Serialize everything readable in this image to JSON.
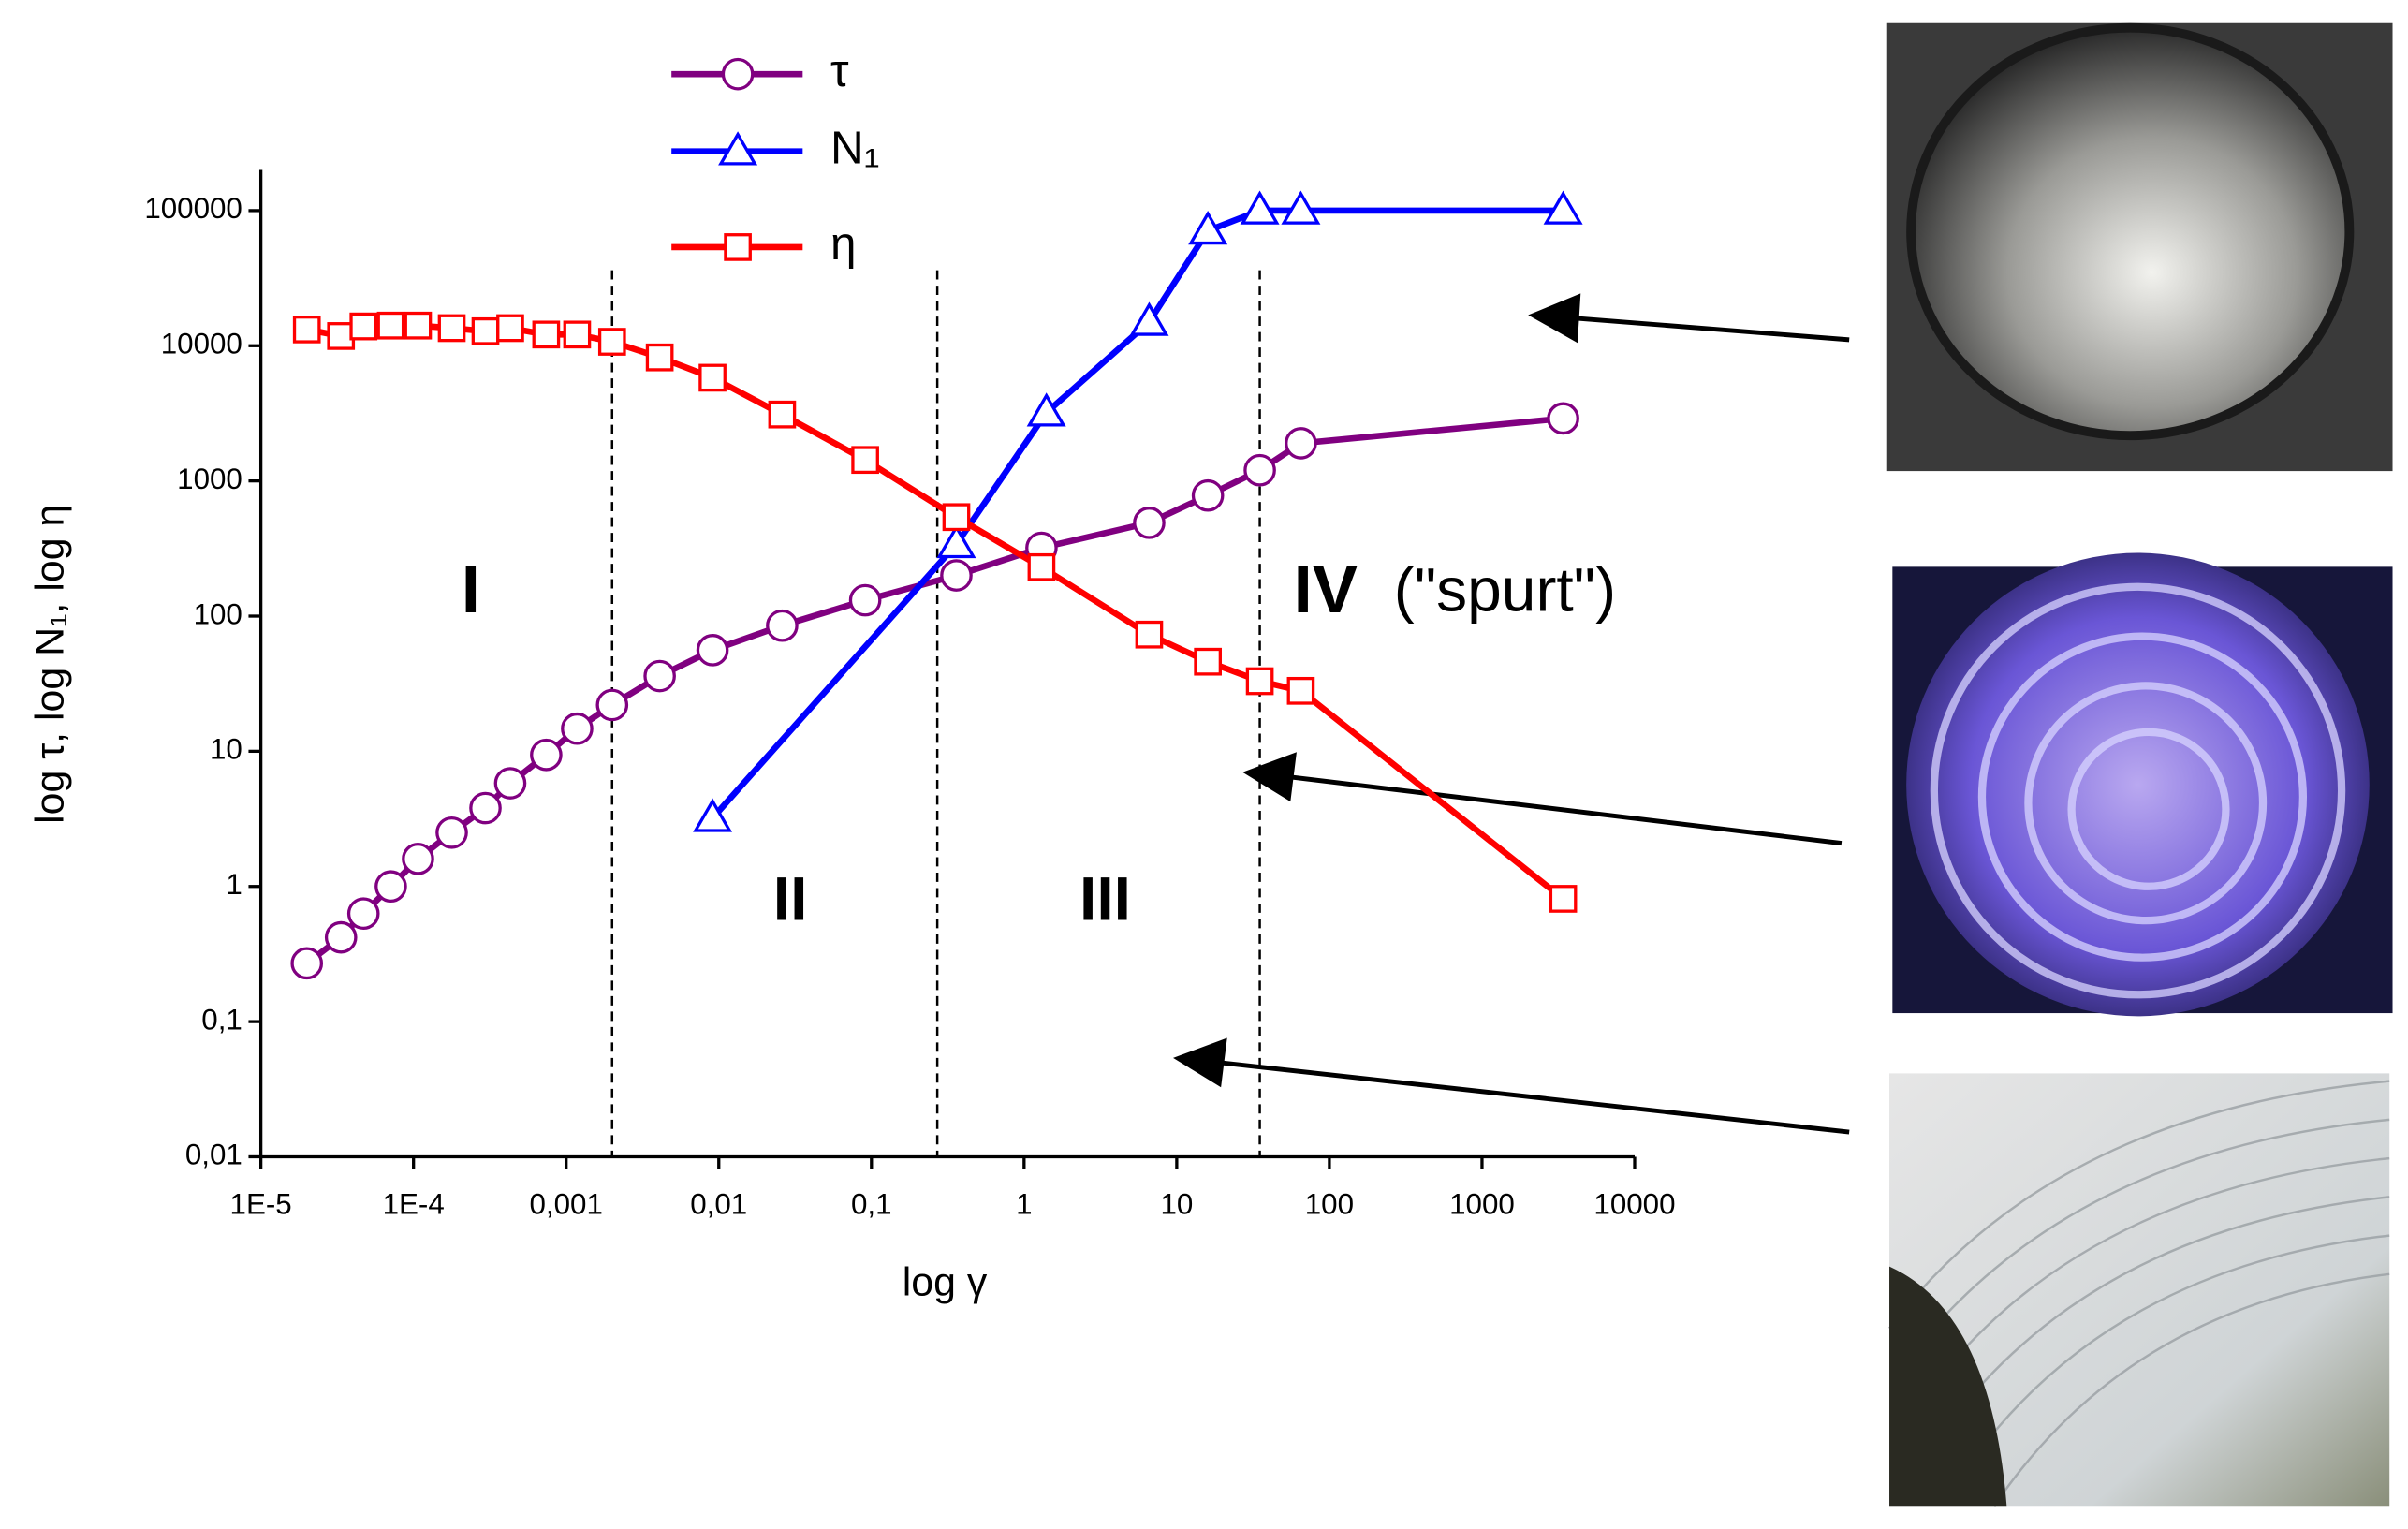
{
  "chart_data": {
    "type": "line",
    "x_label": "log γ",
    "y_label": "log τ, log N₁, log η",
    "log_x": true,
    "log_y": true,
    "xlim": [
      1e-05,
      10000
    ],
    "ylim": [
      0.01,
      200000
    ],
    "xticks": [
      {
        "value": 1e-05,
        "label": "1E-5"
      },
      {
        "value": 0.0001,
        "label": "1E-4"
      },
      {
        "value": 0.001,
        "label": "0,001"
      },
      {
        "value": 0.01,
        "label": "0,01"
      },
      {
        "value": 0.1,
        "label": "0,1"
      },
      1,
      10,
      100,
      1000,
      10000
    ],
    "yticks": [
      {
        "value": 0.01,
        "label": "0,01"
      },
      {
        "value": 0.1,
        "label": "0,1"
      },
      1,
      10,
      100,
      1000,
      10000,
      100000
    ],
    "vlines": [
      0.002,
      0.27,
      35
    ],
    "annotations": [
      "I",
      "II",
      "III",
      "IV",
      "(\"spurt\")"
    ],
    "series": [
      {
        "name": "τ",
        "color": "#800080",
        "marker": "circle",
        "x": [
          2e-05,
          3.35e-05,
          4.7e-05,
          7.1e-05,
          0.000107,
          0.000178,
          0.000296,
          0.00043,
          0.00074,
          0.00118,
          0.002,
          0.0041,
          0.0091,
          0.026,
          0.091,
          0.36,
          1.3,
          6.6,
          16,
          35,
          65,
          3400
        ],
        "values": [
          0.27,
          0.42,
          0.63,
          1.0,
          1.6,
          2.5,
          3.8,
          5.8,
          9.4,
          14.7,
          22,
          36,
          56,
          85,
          131,
          200,
          320,
          490,
          780,
          1200,
          1900,
          2900
        ]
      },
      {
        "name": "N₁",
        "color": "#0000ff",
        "marker": "triangle",
        "x": [
          0.0091,
          0.36,
          1.4,
          6.6,
          16,
          35,
          65,
          3400
        ],
        "values": [
          3.2,
          340,
          3200,
          15000,
          71000,
          100000,
          100000,
          100000
        ]
      },
      {
        "name": "η",
        "color": "#ff0000",
        "marker": "square",
        "x": [
          2e-05,
          3.35e-05,
          4.7e-05,
          7.1e-05,
          0.000107,
          0.000178,
          0.000296,
          0.00043,
          0.00074,
          0.00118,
          0.002,
          0.0041,
          0.0091,
          0.026,
          0.091,
          0.36,
          1.3,
          6.6,
          16,
          35,
          65,
          3400
        ],
        "values": [
          13200,
          11800,
          13900,
          14100,
          14100,
          13500,
          12800,
          13500,
          12100,
          12100,
          10700,
          8200,
          5800,
          3100,
          1430,
          540,
          230,
          73,
          46,
          33,
          28,
          0.81
        ]
      }
    ]
  }
}
